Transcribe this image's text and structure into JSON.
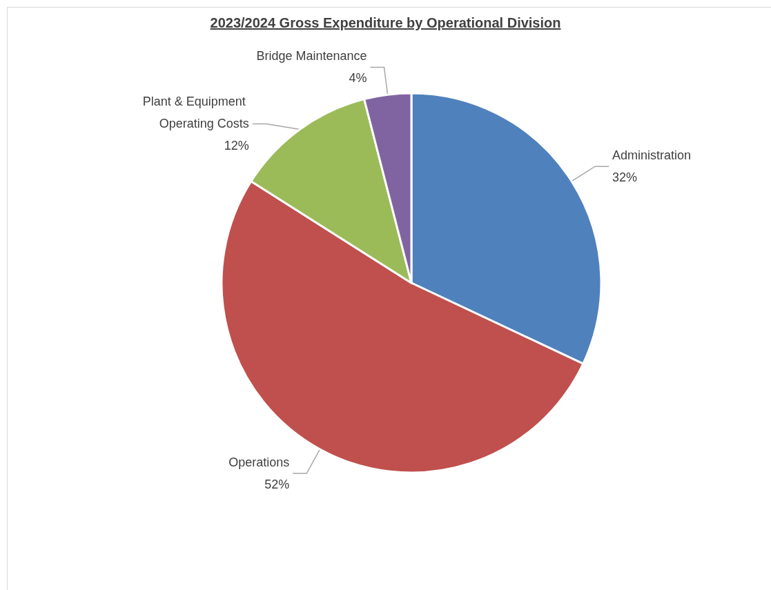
{
  "chart_data": {
    "type": "pie",
    "title": "2023/2024 Gross Expenditure by Operational Division",
    "categories": [
      "Administration",
      "Operations",
      "Plant & Equipment Operating Costs",
      "Bridge Maintenance"
    ],
    "values": [
      32,
      52,
      12,
      4
    ],
    "colors": [
      "#4f81bd",
      "#c0504d",
      "#9bbb59",
      "#8064a2"
    ],
    "value_labels": [
      "32%",
      "52%",
      "12%",
      "4%"
    ],
    "legend": false
  }
}
